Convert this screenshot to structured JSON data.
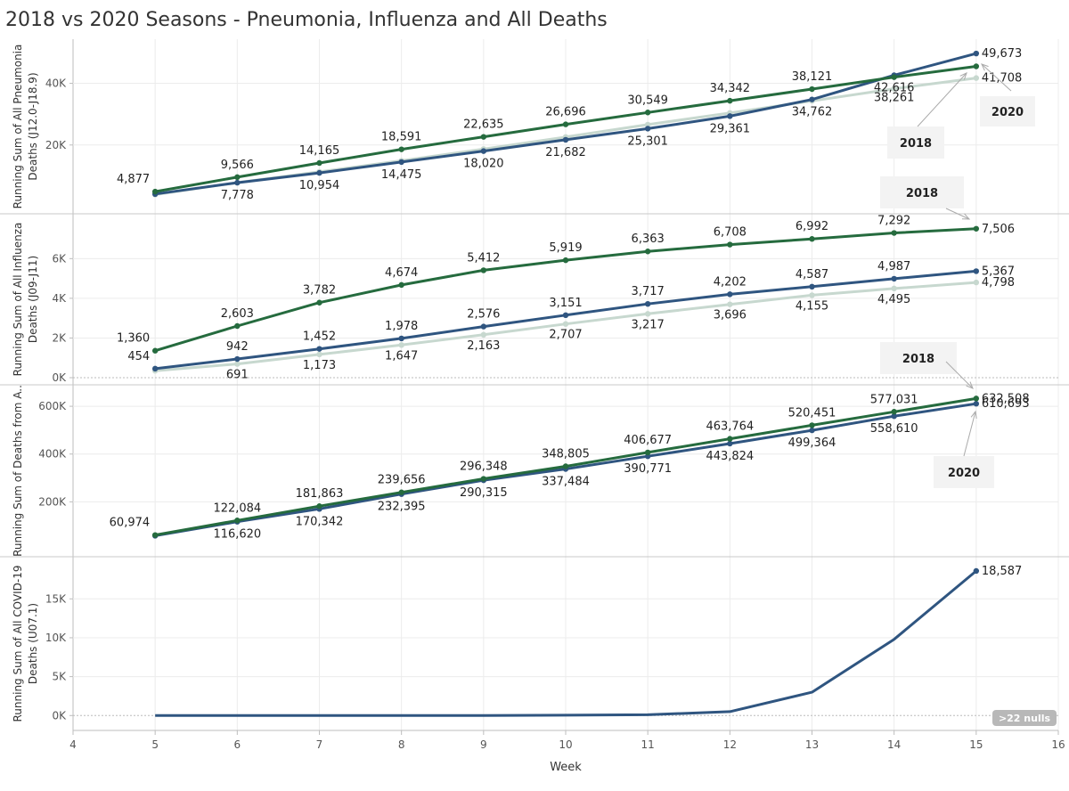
{
  "title": "2018 vs 2020 Seasons - Pneumonia, Influenza and All Deaths",
  "colors": {
    "y2018": "#256b3e",
    "y2020": "#2f5580",
    "y2018light": "#c7d8cf",
    "grid": "#ececec",
    "axis": "#bdbdbd",
    "annoBox": "#f3f3f3",
    "nullsBadge": "#b8b8b8"
  },
  "chart_data": {
    "type": "line",
    "x": [
      5,
      6,
      7,
      8,
      9,
      10,
      11,
      12,
      13,
      14,
      15
    ],
    "xlim": [
      4,
      16
    ],
    "xticks": [
      "4",
      "5",
      "6",
      "7",
      "8",
      "9",
      "10",
      "11",
      "12",
      "13",
      "14",
      "15",
      "16"
    ],
    "xlabel": "Week",
    "panels": [
      {
        "ylabel_lines": [
          "Running Sum of All Pneumonia",
          "Deaths (J12.0-J18.9)"
        ],
        "ylim": [
          0,
          52000
        ],
        "yticks": [
          {
            "v": 20000,
            "label": "20K"
          },
          {
            "v": 40000,
            "label": "40K"
          }
        ],
        "series": [
          {
            "name": "2018 (light)",
            "color": "light",
            "values": [
              3900,
              7800,
              11300,
              14900,
              18700,
              22600,
              26600,
              30400,
              34300,
              38261,
              41708
            ],
            "labels": [
              null,
              null,
              null,
              null,
              null,
              null,
              null,
              null,
              null,
              "38,261",
              "41,708"
            ]
          },
          {
            "name": "2020",
            "color": "y2020",
            "values": [
              4100,
              7778,
              10954,
              14475,
              18020,
              21682,
              25301,
              29361,
              34762,
              42616,
              49673
            ],
            "labels": [
              null,
              "7,778",
              "10,954",
              "14,475",
              "18,020",
              "21,682",
              "25,301",
              "29,361",
              "34,762",
              "42,616",
              "49,673"
            ]
          },
          {
            "name": "2018",
            "color": "y2018",
            "values": [
              4877,
              9566,
              14165,
              18591,
              22635,
              26696,
              30549,
              34342,
              38121,
              42000,
              45500
            ],
            "labels": [
              "4,877",
              "9,566",
              "14,165",
              "18,591",
              "22,635",
              "26,696",
              "30,549",
              "34,342",
              "38,121",
              null,
              null
            ]
          }
        ],
        "annotations": [
          {
            "text": "2018"
          },
          {
            "text": "2020"
          }
        ]
      },
      {
        "ylabel_lines": [
          "Running Sum of All Influenza",
          "Deaths (J09-J11)"
        ],
        "ylim": [
          0,
          7900
        ],
        "yticks": [
          {
            "v": 0,
            "label": "0K"
          },
          {
            "v": 2000,
            "label": "2K"
          },
          {
            "v": 4000,
            "label": "4K"
          },
          {
            "v": 6000,
            "label": "6K"
          }
        ],
        "series": [
          {
            "name": "2018 (light)",
            "color": "light",
            "values": [
              350,
              691,
              1173,
              1647,
              2163,
              2707,
              3217,
              3696,
              4155,
              4495,
              4798
            ],
            "labels": [
              null,
              "691",
              "1,173",
              "1,647",
              "2,163",
              "2,707",
              "3,217",
              "3,696",
              "4,155",
              "4,495",
              "4,798"
            ]
          },
          {
            "name": "2020",
            "color": "y2020",
            "values": [
              454,
              942,
              1452,
              1978,
              2576,
              3151,
              3717,
              4202,
              4587,
              4987,
              5367
            ],
            "labels": [
              "454",
              "942",
              "1,452",
              "1,978",
              "2,576",
              "3,151",
              "3,717",
              "4,202",
              "4,587",
              "4,987",
              "5,367"
            ]
          },
          {
            "name": "2018",
            "color": "y2018",
            "values": [
              1360,
              2603,
              3782,
              4674,
              5412,
              5919,
              6363,
              6708,
              6992,
              7292,
              7506
            ],
            "labels": [
              "1,360",
              "2,603",
              "3,782",
              "4,674",
              "5,412",
              "5,919",
              "6,363",
              "6,708",
              "6,992",
              "7,292",
              "7,506"
            ]
          }
        ],
        "annotations": [
          {
            "text": "2018"
          }
        ]
      },
      {
        "ylabel_lines": [
          "Running Sum of Deaths from A.."
        ],
        "ylim": [
          0,
          660000
        ],
        "yticks": [
          {
            "v": 200000,
            "label": "200K"
          },
          {
            "v": 400000,
            "label": "400K"
          },
          {
            "v": 600000,
            "label": "600K"
          }
        ],
        "series": [
          {
            "name": "2020",
            "color": "y2020",
            "values": [
              58000,
              116620,
              170342,
              232395,
              290315,
              337484,
              390771,
              443824,
              499364,
              558610,
              610693
            ],
            "labels": [
              null,
              "116,620",
              "170,342",
              "232,395",
              "290,315",
              "337,484",
              "390,771",
              "443,824",
              "499,364",
              "558,610",
              "610,693"
            ]
          },
          {
            "name": "2018",
            "color": "y2018",
            "values": [
              60974,
              122084,
              181863,
              239656,
              296348,
              348805,
              406677,
              463764,
              520451,
              577031,
              632508
            ],
            "labels": [
              "60,974",
              "122,084",
              "181,863",
              "239,656",
              "296,348",
              "348,805",
              "406,677",
              "463,764",
              "520,451",
              "577,031",
              "632,508"
            ]
          }
        ],
        "annotations": [
          {
            "text": "2018"
          },
          {
            "text": "2020"
          }
        ]
      },
      {
        "ylabel_lines": [
          "Running Sum of All COVID-19",
          "Deaths (U07.1)"
        ],
        "ylim": [
          -1000,
          19500
        ],
        "yticks": [
          {
            "v": 0,
            "label": "0K"
          },
          {
            "v": 5000,
            "label": "5K"
          },
          {
            "v": 10000,
            "label": "10K"
          },
          {
            "v": 15000,
            "label": "15K"
          }
        ],
        "series": [
          {
            "name": "2020",
            "color": "y2020",
            "values": [
              0,
              0,
              0,
              0,
              10,
              40,
              100,
              500,
              3000,
              9800,
              18587
            ],
            "labels": [
              null,
              null,
              null,
              null,
              null,
              null,
              null,
              null,
              null,
              null,
              "18,587"
            ],
            "lastMarkerOnly": true
          }
        ],
        "nulls_badge": ">22 nulls"
      }
    ]
  }
}
